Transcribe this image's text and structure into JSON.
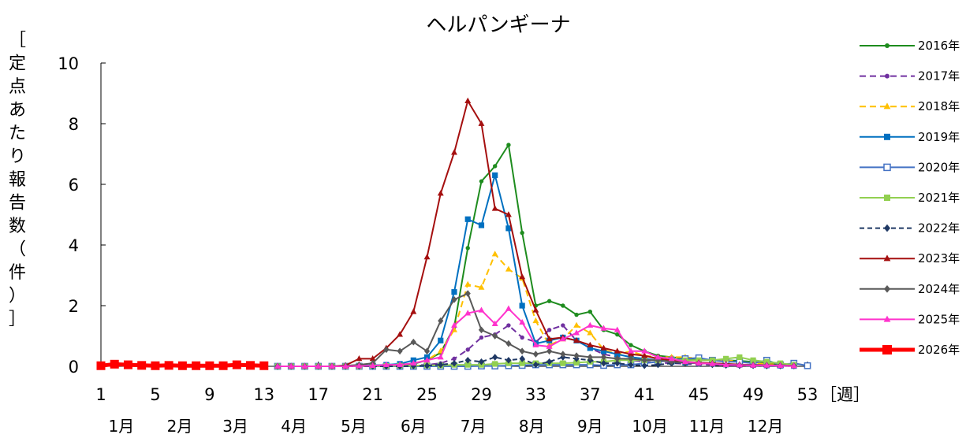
{
  "chart_data": {
    "type": "line",
    "title": "ヘルパンギーナ",
    "ylabel": "［定点あたり報告数（件）］",
    "xlabel": "［週］",
    "xlim": [
      1,
      53
    ],
    "ylim": [
      0,
      10
    ],
    "yticks": [
      0,
      2,
      4,
      6,
      8,
      10
    ],
    "xticks": [
      1,
      5,
      9,
      13,
      17,
      21,
      25,
      29,
      33,
      37,
      41,
      45,
      49,
      53
    ],
    "months": [
      {
        "label": "1月",
        "week": 2.5
      },
      {
        "label": "2月",
        "week": 6.8
      },
      {
        "label": "3月",
        "week": 10.9
      },
      {
        "label": "4月",
        "week": 15.2
      },
      {
        "label": "5月",
        "week": 19.6
      },
      {
        "label": "6月",
        "week": 24.0
      },
      {
        "label": "7月",
        "week": 28.4
      },
      {
        "label": "8月",
        "week": 32.7
      },
      {
        "label": "9月",
        "week": 37.0
      },
      {
        "label": "10月",
        "week": 41.4
      },
      {
        "label": "11月",
        "week": 45.6
      },
      {
        "label": "12月",
        "week": 49.9
      }
    ],
    "legend_position": "right",
    "series": [
      {
        "name": "2016年",
        "color": "#1e8c1e",
        "dash": "",
        "marker": "circle",
        "width": 2,
        "x": [
          14,
          15,
          16,
          17,
          18,
          19,
          20,
          21,
          22,
          23,
          24,
          25,
          26,
          27,
          28,
          29,
          30,
          31,
          32,
          33,
          34,
          35,
          36,
          37,
          38,
          39,
          40,
          41,
          42,
          43,
          44,
          45,
          46,
          47,
          48,
          49,
          50,
          51,
          52
        ],
        "y": [
          0,
          0,
          0,
          0,
          0,
          0.02,
          0.02,
          0.03,
          0.04,
          0.05,
          0.08,
          0.2,
          0.45,
          1.3,
          3.9,
          6.1,
          6.6,
          7.3,
          4.4,
          2.0,
          2.15,
          2.0,
          1.7,
          1.8,
          1.2,
          1.05,
          0.7,
          0.5,
          0.35,
          0.3,
          0.25,
          0.2,
          0.2,
          0.2,
          0.18,
          0.15,
          0.1,
          0.05,
          0.02
        ]
      },
      {
        "name": "2017年",
        "color": "#7030a0",
        "dash": "8,5",
        "marker": "circle",
        "width": 2,
        "x": [
          14,
          15,
          16,
          17,
          18,
          19,
          20,
          21,
          22,
          23,
          24,
          25,
          26,
          27,
          28,
          29,
          30,
          31,
          32,
          33,
          34,
          35,
          36,
          37,
          38,
          39,
          40,
          41,
          42,
          43,
          44,
          45,
          46,
          47,
          48,
          49,
          50,
          51,
          52
        ],
        "y": [
          0,
          0,
          0,
          0,
          0,
          0,
          0,
          0,
          0.01,
          0.02,
          0.03,
          0.05,
          0.1,
          0.25,
          0.55,
          0.95,
          1.05,
          1.35,
          0.95,
          0.8,
          1.2,
          1.35,
          0.85,
          0.6,
          0.4,
          0.3,
          0.2,
          0.15,
          0.12,
          0.1,
          0.08,
          0.06,
          0.05,
          0.04,
          0.03,
          0.03,
          0.02,
          0.01,
          0.01
        ]
      },
      {
        "name": "2018年",
        "color": "#ffc000",
        "dash": "8,5",
        "marker": "triangle",
        "width": 2,
        "x": [
          14,
          15,
          16,
          17,
          18,
          19,
          20,
          21,
          22,
          23,
          24,
          25,
          26,
          27,
          28,
          29,
          30,
          31,
          32,
          33,
          34,
          35,
          36,
          37,
          38,
          39,
          40,
          41,
          42,
          43,
          44,
          45,
          46,
          47,
          48,
          49,
          50,
          51,
          52
        ],
        "y": [
          0,
          0,
          0,
          0,
          0,
          0,
          0.01,
          0.02,
          0.03,
          0.05,
          0.1,
          0.2,
          0.5,
          1.2,
          2.7,
          2.6,
          3.7,
          3.2,
          2.9,
          1.5,
          0.7,
          0.9,
          1.35,
          1.1,
          0.55,
          0.4,
          0.5,
          0.35,
          0.3,
          0.3,
          0.3,
          0.25,
          0.2,
          0.2,
          0.15,
          0.1,
          0.08,
          0.05,
          0.03
        ]
      },
      {
        "name": "2019年",
        "color": "#0070c0",
        "dash": "",
        "marker": "square",
        "width": 2,
        "x": [
          14,
          15,
          16,
          17,
          18,
          19,
          20,
          21,
          22,
          23,
          24,
          25,
          26,
          27,
          28,
          29,
          30,
          31,
          32,
          33,
          34,
          35,
          36,
          37,
          38,
          39,
          40,
          41,
          42,
          43,
          44,
          45,
          46,
          47,
          48,
          49,
          50,
          51,
          52
        ],
        "y": [
          0,
          0,
          0,
          0,
          0,
          0,
          0.02,
          0.03,
          0.05,
          0.08,
          0.2,
          0.3,
          0.85,
          2.45,
          4.85,
          4.65,
          6.3,
          4.55,
          2.0,
          0.75,
          0.85,
          0.95,
          0.85,
          0.6,
          0.5,
          0.4,
          0.3,
          0.25,
          0.2,
          0.15,
          0.12,
          0.1,
          0.08,
          0.06,
          0.05,
          0.04,
          0.03,
          0.02,
          0.01
        ]
      },
      {
        "name": "2020年",
        "color": "#4472c4",
        "dash": "",
        "marker": "square-open",
        "width": 2,
        "x": [
          14,
          15,
          16,
          17,
          18,
          19,
          20,
          21,
          22,
          23,
          24,
          25,
          26,
          27,
          28,
          29,
          30,
          31,
          32,
          33,
          34,
          35,
          36,
          37,
          38,
          39,
          40,
          41,
          42,
          43,
          44,
          45,
          46,
          47,
          48,
          49,
          50,
          51,
          52,
          53
        ],
        "y": [
          0,
          0,
          0,
          0,
          0,
          0,
          0,
          0,
          0,
          0,
          0,
          0,
          0,
          0,
          0,
          0.01,
          0.01,
          0.02,
          0.03,
          0.05,
          0.05,
          0.05,
          0.05,
          0.05,
          0.03,
          0.05,
          0.05,
          0.1,
          0.15,
          0.2,
          0.25,
          0.28,
          0.2,
          0.15,
          0.15,
          0.1,
          0.2,
          0.05,
          0.1,
          0.02
        ]
      },
      {
        "name": "2021年",
        "color": "#92d050",
        "dash": "",
        "marker": "square",
        "width": 2,
        "x": [
          14,
          15,
          16,
          17,
          18,
          19,
          20,
          21,
          22,
          23,
          24,
          25,
          26,
          27,
          28,
          29,
          30,
          31,
          32,
          33,
          34,
          35,
          36,
          37,
          38,
          39,
          40,
          41,
          42,
          43,
          44,
          45,
          46,
          47,
          48,
          49,
          50,
          51,
          52
        ],
        "y": [
          0,
          0,
          0,
          0,
          0,
          0,
          0,
          0.01,
          0.01,
          0.02,
          0.02,
          0.03,
          0.03,
          0.05,
          0.05,
          0.05,
          0.08,
          0.1,
          0.1,
          0.1,
          0.1,
          0.1,
          0.12,
          0.15,
          0.15,
          0.2,
          0.2,
          0.2,
          0.2,
          0.2,
          0.2,
          0.2,
          0.2,
          0.25,
          0.3,
          0.2,
          0.15,
          0.1,
          0.05
        ]
      },
      {
        "name": "2022年",
        "color": "#1f3864",
        "dash": "6,4",
        "marker": "diamond",
        "width": 2,
        "x": [
          14,
          15,
          16,
          17,
          18,
          19,
          20,
          21,
          22,
          23,
          24,
          25,
          26,
          27,
          28,
          29,
          30,
          31,
          32,
          33,
          34,
          35,
          36,
          37,
          38,
          39,
          40,
          41,
          42,
          43,
          44,
          45,
          46,
          47,
          48,
          49,
          50,
          51,
          52
        ],
        "y": [
          0,
          0,
          0,
          0,
          0,
          0,
          0,
          0,
          0,
          0,
          0.01,
          0.02,
          0.05,
          0.1,
          0.2,
          0.15,
          0.3,
          0.2,
          0.25,
          0.05,
          0.15,
          0.3,
          0.25,
          0.2,
          0.1,
          0.1,
          0.05,
          0.02,
          0.05,
          0.1,
          0.12,
          0.1,
          0.05,
          0.03,
          0.02,
          0.02,
          0.01,
          0.01,
          0.01
        ]
      },
      {
        "name": "2023年",
        "color": "#a50f0f",
        "dash": "",
        "marker": "triangle",
        "width": 2,
        "x": [
          14,
          15,
          16,
          17,
          18,
          19,
          20,
          21,
          22,
          23,
          24,
          25,
          26,
          27,
          28,
          29,
          30,
          31,
          32,
          33,
          34,
          35,
          36,
          37,
          38,
          39,
          40,
          41,
          42,
          43,
          44,
          45,
          46,
          47,
          48,
          49,
          50,
          51,
          52
        ],
        "y": [
          0,
          0,
          0,
          0,
          0,
          0.03,
          0.25,
          0.25,
          0.6,
          1.05,
          1.8,
          3.6,
          5.7,
          7.05,
          8.75,
          8.0,
          5.2,
          5.0,
          2.95,
          1.85,
          0.9,
          0.95,
          0.85,
          0.7,
          0.6,
          0.5,
          0.4,
          0.35,
          0.25,
          0.2,
          0.15,
          0.12,
          0.1,
          0.08,
          0.06,
          0.05,
          0.04,
          0.03,
          0.02
        ]
      },
      {
        "name": "2024年",
        "color": "#595959",
        "dash": "",
        "marker": "diamond",
        "width": 2,
        "x": [
          14,
          15,
          16,
          17,
          18,
          19,
          20,
          21,
          22,
          23,
          24,
          25,
          26,
          27,
          28,
          29,
          30,
          31,
          32,
          33,
          34,
          35,
          36,
          37,
          38,
          39,
          40,
          41,
          42,
          43,
          44,
          45,
          46,
          47,
          48,
          49,
          50,
          51,
          52
        ],
        "y": [
          0,
          0,
          0,
          0,
          0,
          0.02,
          0.05,
          0.1,
          0.55,
          0.5,
          0.8,
          0.5,
          1.5,
          2.2,
          2.4,
          1.2,
          1.0,
          0.75,
          0.5,
          0.4,
          0.5,
          0.4,
          0.35,
          0.3,
          0.3,
          0.25,
          0.25,
          0.2,
          0.2,
          0.15,
          0.12,
          0.1,
          0.08,
          0.06,
          0.05,
          0.05,
          0.04,
          0.03,
          0.02
        ]
      },
      {
        "name": "2025年",
        "color": "#ff33cc",
        "dash": "",
        "marker": "triangle",
        "width": 2,
        "x": [
          14,
          15,
          16,
          17,
          18,
          19,
          20,
          21,
          22,
          23,
          24,
          25,
          26,
          27,
          28,
          29,
          30,
          31,
          32,
          33,
          34,
          35,
          36,
          37,
          38,
          39,
          40,
          41,
          42,
          43,
          44,
          45,
          46,
          47,
          48,
          49,
          50,
          51,
          52
        ],
        "y": [
          0,
          0,
          0,
          0,
          0,
          0,
          0.01,
          0.02,
          0.05,
          0.05,
          0.1,
          0.2,
          0.3,
          1.35,
          1.75,
          1.85,
          1.4,
          1.9,
          1.45,
          0.7,
          0.65,
          0.9,
          1.1,
          1.35,
          1.25,
          1.2,
          0.5,
          0.5,
          0.3,
          0.25,
          0.15,
          0.1,
          0.08,
          0.05,
          0.04,
          0.03,
          0.03,
          0.02,
          0.01
        ]
      },
      {
        "name": "2026年",
        "color": "#ff0000",
        "dash": "",
        "marker": "square",
        "width": 5,
        "x": [
          1,
          2,
          3,
          4,
          5,
          6,
          7,
          8,
          9,
          10,
          11,
          12,
          13
        ],
        "y": [
          0.02,
          0.07,
          0.05,
          0.03,
          0.02,
          0.03,
          0.02,
          0.02,
          0.02,
          0.02,
          0.05,
          0.03,
          0.02
        ]
      }
    ]
  }
}
